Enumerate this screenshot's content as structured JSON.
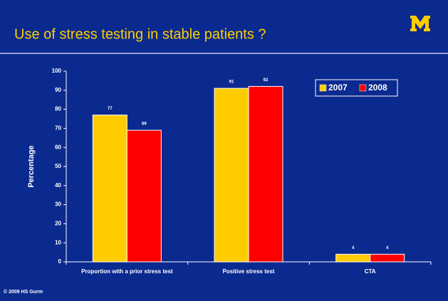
{
  "title": "Use of stress testing in stable patients ?",
  "footer": "© 2009 HS Gurm",
  "chart_data": {
    "type": "bar",
    "categories": [
      "Proportion with  a prior stress test",
      "Positive stress test",
      "CTA"
    ],
    "series": [
      {
        "name": "2007",
        "color": "#ffcc00",
        "values": [
          77,
          91,
          4
        ]
      },
      {
        "name": "2008",
        "color": "#ff0000",
        "values": [
          69,
          92,
          4
        ]
      }
    ],
    "ylabel": "Percentage",
    "ylim": [
      0,
      100
    ],
    "yticks": [
      0,
      10,
      20,
      30,
      40,
      50,
      60,
      70,
      80,
      90,
      100
    ],
    "legend": "upper right"
  }
}
